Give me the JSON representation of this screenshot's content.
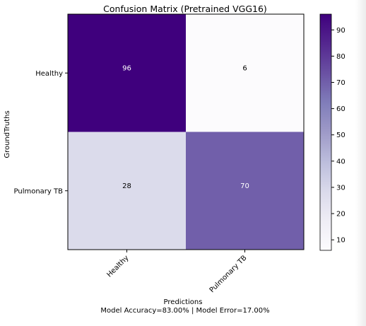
{
  "chart_data": {
    "type": "heatmap",
    "title": "Confusion Matrix (Pretrained VGG16)",
    "xlabel": "Predictions",
    "ylabel": "GroundTruths",
    "subtitle": "Model Accuracy=83.00% | Model Error=17.00%",
    "x_categories": [
      "Healthy",
      "Pulmonary TB"
    ],
    "y_categories": [
      "Healthy",
      "Pulmonary TB"
    ],
    "values": [
      [
        96,
        6
      ],
      [
        28,
        70
      ]
    ],
    "colormap": "Purples",
    "colorbar": {
      "min": 6,
      "max": 96,
      "ticks": [
        10,
        20,
        30,
        40,
        50,
        60,
        70,
        80,
        90
      ]
    },
    "cell_text_colors": {
      "dark": "#ffffff",
      "light": "#000000"
    }
  }
}
